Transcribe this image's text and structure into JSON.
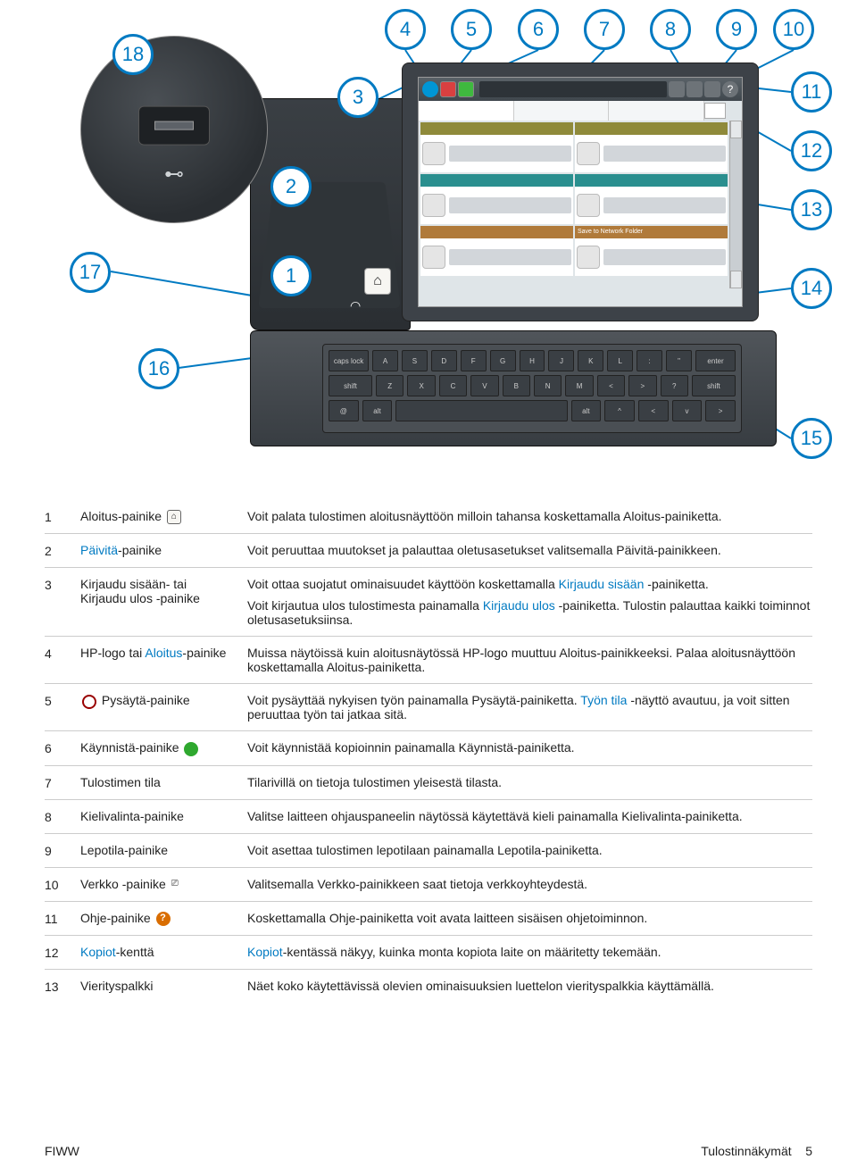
{
  "colors": {
    "callout_border": "#007ac2",
    "callout_text": "#007ac2",
    "link": "#007ac2",
    "divider": "#cccccc",
    "body_text": "#222222",
    "printer_dark": "#3d4248",
    "printer_base": "#50555a",
    "screen_bg": "#dfe5e8"
  },
  "diagram": {
    "callouts": [
      "1",
      "2",
      "3",
      "4",
      "5",
      "6",
      "7",
      "8",
      "9",
      "10",
      "11",
      "12",
      "13",
      "14",
      "15",
      "16",
      "17",
      "18"
    ],
    "screen": {
      "network_label": "Save to Network Folder",
      "help_glyph": "?"
    },
    "keyboard": {
      "row1": [
        "caps lock",
        "A",
        "S",
        "D",
        "F",
        "G",
        "H",
        "J",
        "K",
        "L",
        ":",
        "\"",
        "enter"
      ],
      "row2": [
        "shift",
        "Z",
        "X",
        "C",
        "V",
        "B",
        "N",
        "M",
        "<",
        ">",
        "?",
        "shift"
      ],
      "row3": [
        "@",
        "alt",
        "",
        "alt",
        "^",
        "<",
        "v",
        ">"
      ]
    },
    "home_glyph": "⌂",
    "nfc_glyph": "◠",
    "usb_glyph": "⊷"
  },
  "legend": {
    "rows": [
      {
        "num": "1",
        "name_pre": "Aloitus-painike ",
        "icon": "home",
        "icon_glyph": "⌂",
        "desc": [
          {
            "t": "Voit palata tulostimen aloitusnäyttöön milloin tahansa koskettamalla Aloitus-painiketta."
          }
        ]
      },
      {
        "num": "2",
        "name_link": "Päivitä",
        "name_post": "-painike",
        "desc": [
          {
            "t": "Voit peruuttaa muutokset ja palauttaa oletusasetukset valitsemalla Päivitä-painikkeen."
          }
        ]
      },
      {
        "num": "3",
        "name_pre": "Kirjaudu sisään- tai Kirjaudu ulos -painike",
        "desc": [
          {
            "t": "Voit ottaa suojatut ominaisuudet käyttöön koskettamalla ",
            "link": "Kirjaudu sisään",
            "after": " -painiketta."
          },
          {
            "t": "Voit kirjautua ulos tulostimesta painamalla ",
            "link": "Kirjaudu ulos",
            "after": " -painiketta. Tulostin palauttaa kaikki toiminnot oletusasetuksiinsa."
          }
        ]
      },
      {
        "num": "4",
        "name_pre": "HP-logo tai ",
        "name_link": "Aloitus",
        "name_post2": "-painike",
        "desc": [
          {
            "t": "Muissa näytöissä kuin aloitusnäytössä HP-logo muuttuu Aloitus-painikkeeksi. Palaa aloitusnäyttöön koskettamalla Aloitus-painiketta."
          }
        ]
      },
      {
        "num": "5",
        "icon": "stop",
        "icon_glyph": "",
        "name_post": " Pysäytä-painike",
        "desc": [
          {
            "t": "Voit pysäyttää nykyisen työn painamalla Pysäytä-painiketta. ",
            "link": "Työn tila",
            "after": " -näyttö avautuu, ja voit sitten peruuttaa työn tai jatkaa sitä."
          }
        ]
      },
      {
        "num": "6",
        "name_pre": "Käynnistä-painike ",
        "icon": "start",
        "icon_glyph": "",
        "desc": [
          {
            "t": "Voit käynnistää kopioinnin painamalla Käynnistä-painiketta."
          }
        ]
      },
      {
        "num": "7",
        "name_pre": "Tulostimen tila",
        "desc": [
          {
            "t": "Tilarivillä on tietoja tulostimen yleisestä tilasta."
          }
        ]
      },
      {
        "num": "8",
        "name_pre": "Kielivalinta-painike",
        "desc": [
          {
            "t": "Valitse laitteen ohjauspaneelin näytössä käytettävä kieli painamalla Kielivalinta-painiketta."
          }
        ]
      },
      {
        "num": "9",
        "name_pre": "Lepotila-painike",
        "desc": [
          {
            "t": "Voit asettaa tulostimen lepotilaan painamalla Lepotila-painiketta."
          }
        ]
      },
      {
        "num": "10",
        "name_pre": "Verkko ",
        "icon": "net",
        "icon_glyph": "⎚",
        "name_post": "-painike",
        "desc": [
          {
            "t": "Valitsemalla Verkko-painikkeen saat tietoja verkkoyhteydestä."
          }
        ]
      },
      {
        "num": "11",
        "name_pre": "Ohje-painike ",
        "icon": "help",
        "icon_glyph": "?",
        "desc": [
          {
            "t": "Koskettamalla Ohje-painiketta voit avata laitteen sisäisen ohjetoiminnon."
          }
        ]
      },
      {
        "num": "12",
        "name_link": "Kopiot",
        "name_post": "-kenttä",
        "desc": [
          {
            "link": "Kopiot",
            "after": "-kentässä näkyy, kuinka monta kopiota laite on määritetty tekemään."
          }
        ]
      },
      {
        "num": "13",
        "name_pre": "Vierityspalkki",
        "desc": [
          {
            "t": "Näet koko käytettävissä olevien ominaisuuksien luettelon vierityspalkkia käyttämällä."
          }
        ]
      }
    ]
  },
  "footer": {
    "left": "FIWW",
    "right_label": "Tulostinnäkymät",
    "page": "5"
  }
}
